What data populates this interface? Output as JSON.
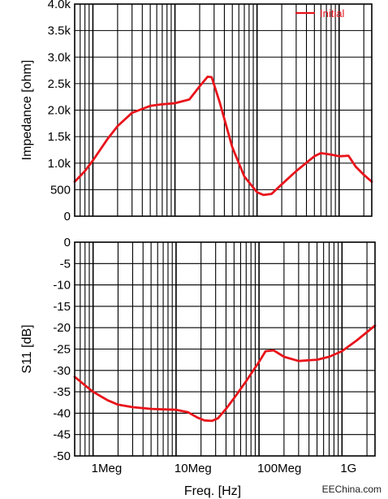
{
  "chart_data": [
    {
      "type": "line",
      "xlabel": "",
      "ylabel": "Impedance [ohm]",
      "x_scale": "log",
      "xlim": [
        600000,
        2500000000
      ],
      "ylim": [
        0,
        4000
      ],
      "y_ticks": [
        0,
        500,
        1000,
        1500,
        2000,
        2500,
        3000,
        3500,
        4000
      ],
      "y_tick_labels": [
        "0",
        "500",
        "1.0k",
        "1.5k",
        "2.0k",
        "2.5k",
        "3.0k",
        "3.5k",
        "4.0k"
      ],
      "grid": true,
      "legend": {
        "position": "top-right",
        "entries": [
          "Initial"
        ]
      },
      "series": [
        {
          "name": "Initial",
          "color": "#e8141b",
          "x": [
            600000,
            800000,
            1000000,
            1500000,
            2000000,
            3000000,
            5000000,
            7000000,
            10000000,
            15000000,
            20000000,
            25000000,
            28000000,
            35000000,
            50000000,
            70000000,
            100000000,
            120000000,
            150000000,
            200000000,
            300000000,
            500000000,
            600000000,
            800000000,
            1000000000,
            1300000000,
            1600000000,
            2000000000,
            2500000000
          ],
          "y": [
            650,
            850,
            1050,
            1450,
            1700,
            1950,
            2080,
            2110,
            2130,
            2200,
            2450,
            2630,
            2620,
            2150,
            1300,
            750,
            450,
            400,
            420,
            600,
            850,
            1130,
            1190,
            1160,
            1130,
            1140,
            930,
            780,
            650
          ]
        }
      ]
    },
    {
      "type": "line",
      "xlabel": "Freq. [Hz]",
      "ylabel": "S11 [dB]",
      "x_scale": "log",
      "xlim": [
        600000,
        2500000000
      ],
      "ylim": [
        -50,
        0
      ],
      "y_ticks": [
        0,
        -5,
        -10,
        -15,
        -20,
        -25,
        -30,
        -35,
        -40,
        -45,
        -50
      ],
      "x_ticks": [
        1000000,
        10000000,
        100000000,
        1000000000
      ],
      "x_tick_labels": [
        "1Meg",
        "10Meg",
        "100Meg",
        "1G"
      ],
      "grid": true,
      "series": [
        {
          "color": "#e8141b",
          "x": [
            600000,
            800000,
            1000000,
            1500000,
            2000000,
            3000000,
            5000000,
            7000000,
            10000000,
            14000000,
            18000000,
            22000000,
            27000000,
            32000000,
            40000000,
            50000000,
            70000000,
            100000000,
            120000000,
            150000000,
            200000000,
            300000000,
            500000000,
            700000000,
            1000000000,
            1500000000,
            2500000000
          ],
          "y": [
            -31.5,
            -33.5,
            -35,
            -37,
            -38,
            -38.6,
            -39,
            -39.1,
            -39.2,
            -39.8,
            -41,
            -41.7,
            -41.8,
            -41.2,
            -39,
            -36.5,
            -32.5,
            -28,
            -25.5,
            -25.3,
            -26.8,
            -27.8,
            -27.5,
            -26.8,
            -25.5,
            -23,
            -19.5
          ]
        }
      ]
    }
  ],
  "watermark": {
    "text": "EEChina.com"
  },
  "colors": {
    "curve": "#e8141b",
    "grid": "#000000",
    "frame": "#000000"
  }
}
